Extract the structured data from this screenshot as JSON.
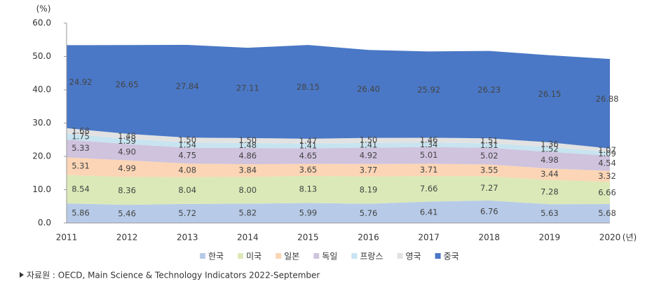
{
  "chart_data": {
    "type": "stacked-area",
    "y_unit": "(%)",
    "x_unit": "(년)",
    "source": "자료원 : OECD, Main Science & Technology Indicators 2022-September",
    "categories": [
      "2011",
      "2012",
      "2013",
      "2014",
      "2015",
      "2016",
      "2017",
      "2018",
      "2019",
      "2020"
    ],
    "ylim": [
      0,
      60
    ],
    "yticks": [
      {
        "value": 0,
        "label": "0.0"
      },
      {
        "value": 10,
        "label": "10.0"
      },
      {
        "value": 20,
        "label": "20.0"
      },
      {
        "value": 30,
        "label": "30.0"
      },
      {
        "value": 40,
        "label": "40.0"
      },
      {
        "value": 50,
        "label": "50.0"
      },
      {
        "value": 60,
        "label": "60.0"
      }
    ],
    "series": [
      {
        "name": "한국",
        "color": "#b7cbe8",
        "values": [
          5.86,
          5.46,
          5.72,
          5.82,
          5.99,
          5.76,
          6.41,
          6.76,
          5.63,
          5.68
        ],
        "value_labels": [
          "5.86",
          "5.46",
          "5.72",
          "5.82",
          "5.99",
          "5.76",
          "6.41",
          "6.76",
          "5.63",
          "5.68"
        ]
      },
      {
        "name": "미국",
        "color": "#dbe9b8",
        "values": [
          8.54,
          8.36,
          8.04,
          8.0,
          8.13,
          8.19,
          7.66,
          7.27,
          7.28,
          6.66
        ],
        "value_labels": [
          "8.54",
          "8.36",
          "8.04",
          "8.00",
          "8.13",
          "8.19",
          "7.66",
          "7.27",
          "7.28",
          "6.66"
        ]
      },
      {
        "name": "일본",
        "color": "#fbd5b5",
        "values": [
          5.31,
          4.99,
          4.08,
          3.84,
          3.65,
          3.77,
          3.71,
          3.55,
          3.44,
          3.32
        ],
        "value_labels": [
          "5.31",
          "4.99",
          "4.08",
          "3.84",
          "3.65",
          "3.77",
          "3.71",
          "3.55",
          "3.44",
          "3.32"
        ]
      },
      {
        "name": "독일",
        "color": "#cfc3de",
        "values": [
          5.33,
          4.9,
          4.75,
          4.86,
          4.65,
          4.92,
          5.01,
          5.02,
          4.98,
          4.54
        ],
        "value_labels": [
          "5.33",
          "4.90",
          "4.75",
          "4.86",
          "4.65",
          "4.92",
          "5.01",
          "5.02",
          "4.98",
          "4.54"
        ]
      },
      {
        "name": "프랑스",
        "color": "#c7e4f0",
        "values": [
          1.75,
          1.59,
          1.54,
          1.48,
          1.41,
          1.41,
          1.34,
          1.31,
          1.52,
          1.09
        ],
        "value_labels": [
          "1.75",
          "1.59",
          "1.54",
          "1.48",
          "1.41",
          "1.41",
          "1.34",
          "1.31",
          "1.52",
          "1.09"
        ]
      },
      {
        "name": "영국",
        "color": "#e2e2e2",
        "values": [
          1.68,
          1.48,
          1.5,
          1.5,
          1.47,
          1.5,
          1.46,
          1.51,
          1.36,
          1.07
        ],
        "value_labels": [
          "1.68",
          "1.48",
          "1.50",
          "1.50",
          "1.47",
          "1.50",
          "1.46",
          "1.51",
          "1.36",
          "1.07"
        ]
      },
      {
        "name": "중국",
        "color": "#4a78c6",
        "values": [
          24.92,
          26.65,
          27.84,
          27.11,
          28.15,
          26.4,
          25.92,
          26.23,
          26.15,
          26.88
        ],
        "value_labels": [
          "24.92",
          "26.65",
          "27.84",
          "27.11",
          "28.15",
          "26.40",
          "25.92",
          "26.23",
          "26.15",
          "26.88"
        ]
      }
    ]
  }
}
